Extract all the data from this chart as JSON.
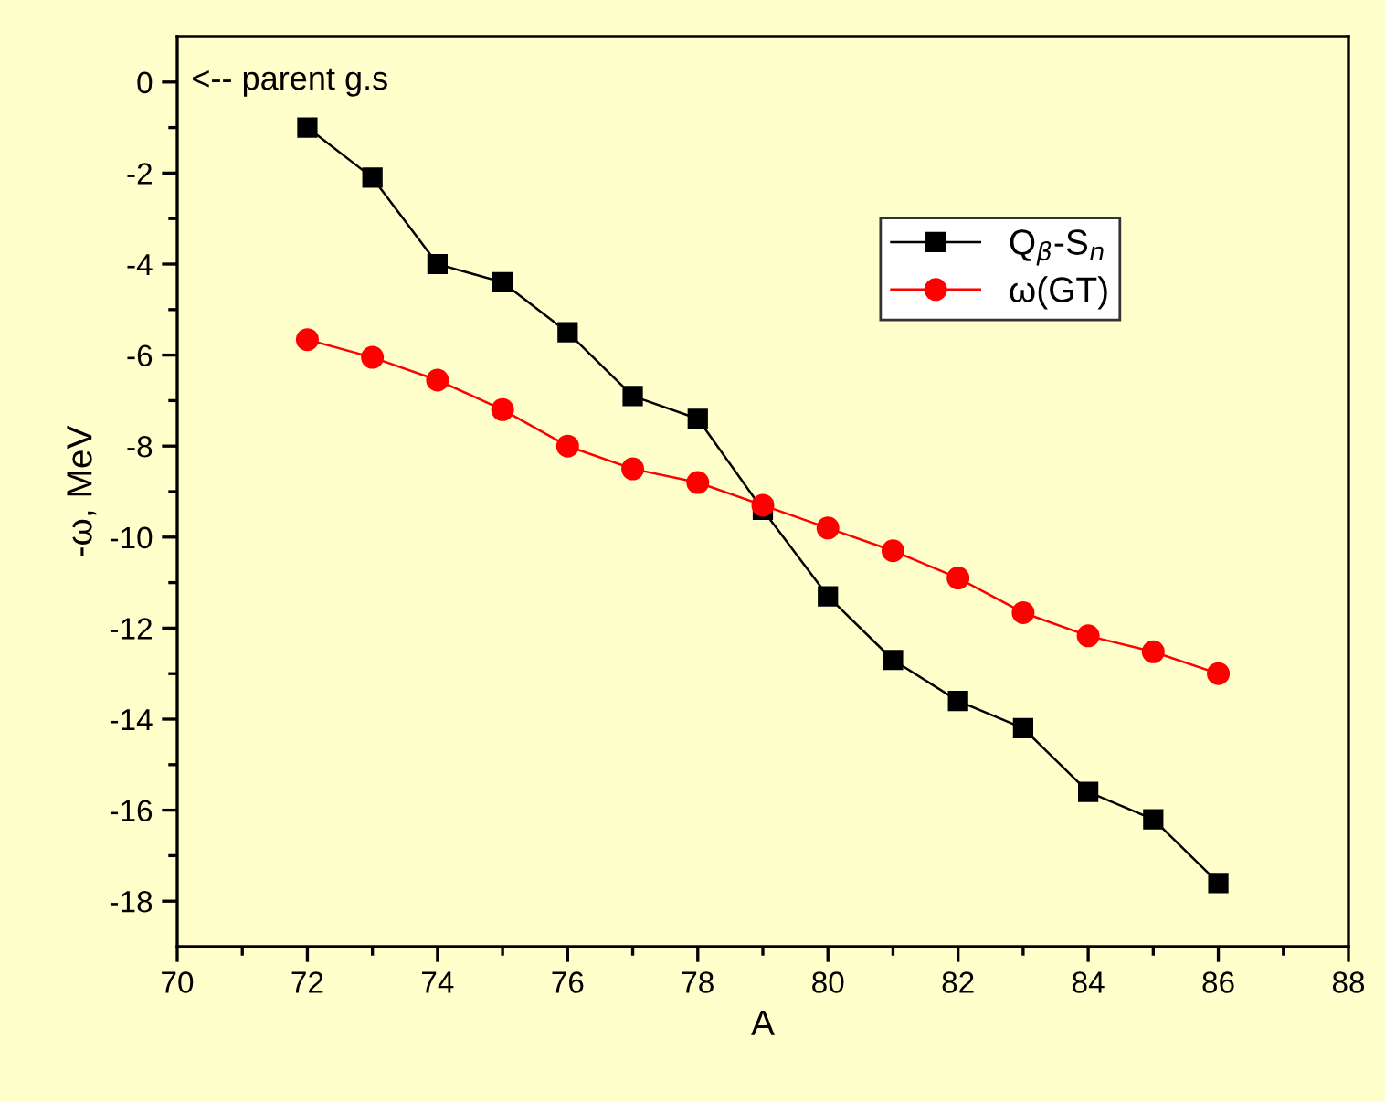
{
  "chart_data": {
    "type": "line",
    "xlabel": "A",
    "ylabel": "-ω, MeV",
    "x": [
      72,
      73,
      74,
      75,
      76,
      77,
      78,
      79,
      80,
      81,
      82,
      83,
      84,
      85,
      86
    ],
    "series": [
      {
        "name": "Q$_{β}$-S$_{n}$",
        "color": "#000000",
        "marker": "square",
        "values": [
          -1.0,
          -2.1,
          -4.0,
          -4.4,
          -5.5,
          -6.9,
          -7.4,
          -9.4,
          -11.3,
          -12.7,
          -13.6,
          -14.2,
          -15.6,
          -16.2,
          -17.6
        ]
      },
      {
        "name": "ω(GT)",
        "color": "#ff0000",
        "marker": "circle",
        "values": [
          -5.66,
          -6.05,
          -6.55,
          -7.2,
          -8.0,
          -8.5,
          -8.8,
          -9.3,
          -9.8,
          -10.3,
          -10.9,
          -11.66,
          -12.17,
          -12.52,
          -13.0
        ]
      }
    ],
    "xlim": [
      70,
      88
    ],
    "xticks": [
      70,
      72,
      74,
      76,
      78,
      80,
      82,
      84,
      86,
      88
    ],
    "ylim": [
      -19,
      1
    ],
    "yticks": [
      0,
      -2,
      -4,
      -6,
      -8,
      -10,
      -12,
      -14,
      -16,
      -18
    ],
    "annotations": [
      "<-- parent g.s"
    ],
    "grid": false,
    "legend": "top right",
    "line_style": "solid"
  }
}
